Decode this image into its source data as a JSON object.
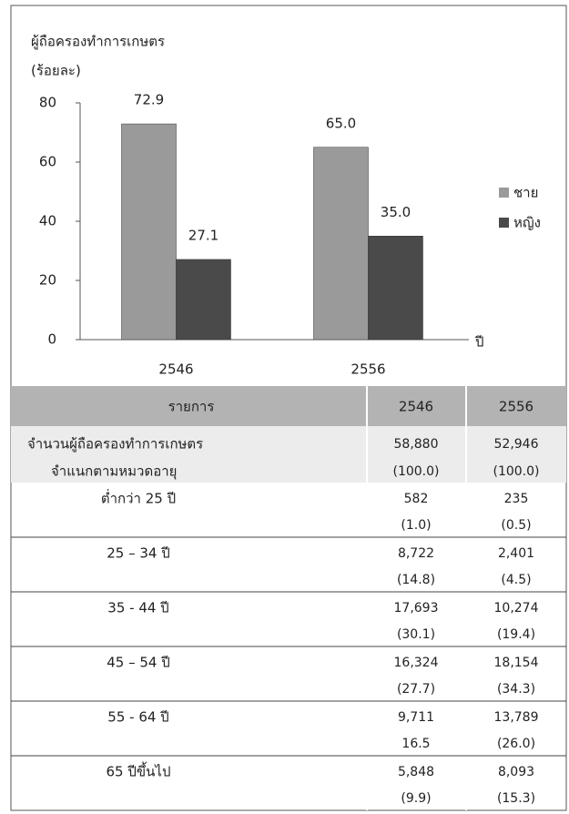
{
  "chart_data": {
    "type": "bar",
    "title": "ผู้ถือครองทำการเกษตร",
    "y_label": "(ร้อยละ)",
    "x_label": "ปี",
    "categories": [
      "2546",
      "2556"
    ],
    "series": [
      {
        "name": "ชาย",
        "color": "#9a9a9a",
        "values": [
          72.9,
          65.0
        ],
        "value_labels": [
          "72.9",
          "65.0"
        ]
      },
      {
        "name": "หญิง",
        "color": "#4a4a4a",
        "values": [
          27.1,
          35.0
        ],
        "value_labels": [
          "27.1",
          "35.0"
        ]
      }
    ],
    "ylim": [
      0,
      80
    ],
    "yticks": [
      0,
      20,
      40,
      60,
      80
    ],
    "legend": "right"
  },
  "table": {
    "header": [
      "รายการ",
      "2546",
      "2556"
    ],
    "rows": [
      {
        "label": [
          "จำนวนผู้ถือครองทำการเกษตร",
          "จำแนกตามหมวดอายุ"
        ],
        "values": [
          "58,880",
          "52,946"
        ],
        "shares": [
          "(100.0)",
          "(100.0)"
        ]
      },
      {
        "label": [
          "ต่ำกว่า 25 ปี"
        ],
        "values": [
          "582",
          "235"
        ],
        "shares": [
          "(1.0)",
          "(0.5)"
        ]
      },
      {
        "label": [
          "25 – 34 ปี"
        ],
        "values": [
          "8,722",
          "2,401"
        ],
        "shares": [
          "(14.8)",
          "(4.5)"
        ]
      },
      {
        "label": [
          "35 - 44 ปี"
        ],
        "values": [
          "17,693",
          "10,274"
        ],
        "shares": [
          "(30.1)",
          "(19.4)"
        ]
      },
      {
        "label": [
          "45 – 54 ปี"
        ],
        "values": [
          "16,324",
          "18,154"
        ],
        "shares": [
          "(27.7)",
          "(34.3)"
        ]
      },
      {
        "label": [
          "55 - 64 ปี"
        ],
        "values": [
          "9,711",
          "13,789"
        ],
        "shares": [
          "16.5",
          "(26.0)"
        ]
      },
      {
        "label": [
          "65 ปีขึ้นไป"
        ],
        "values": [
          "5,848",
          "8,093"
        ],
        "shares": [
          "(9.9)",
          "(15.3)"
        ]
      }
    ]
  }
}
